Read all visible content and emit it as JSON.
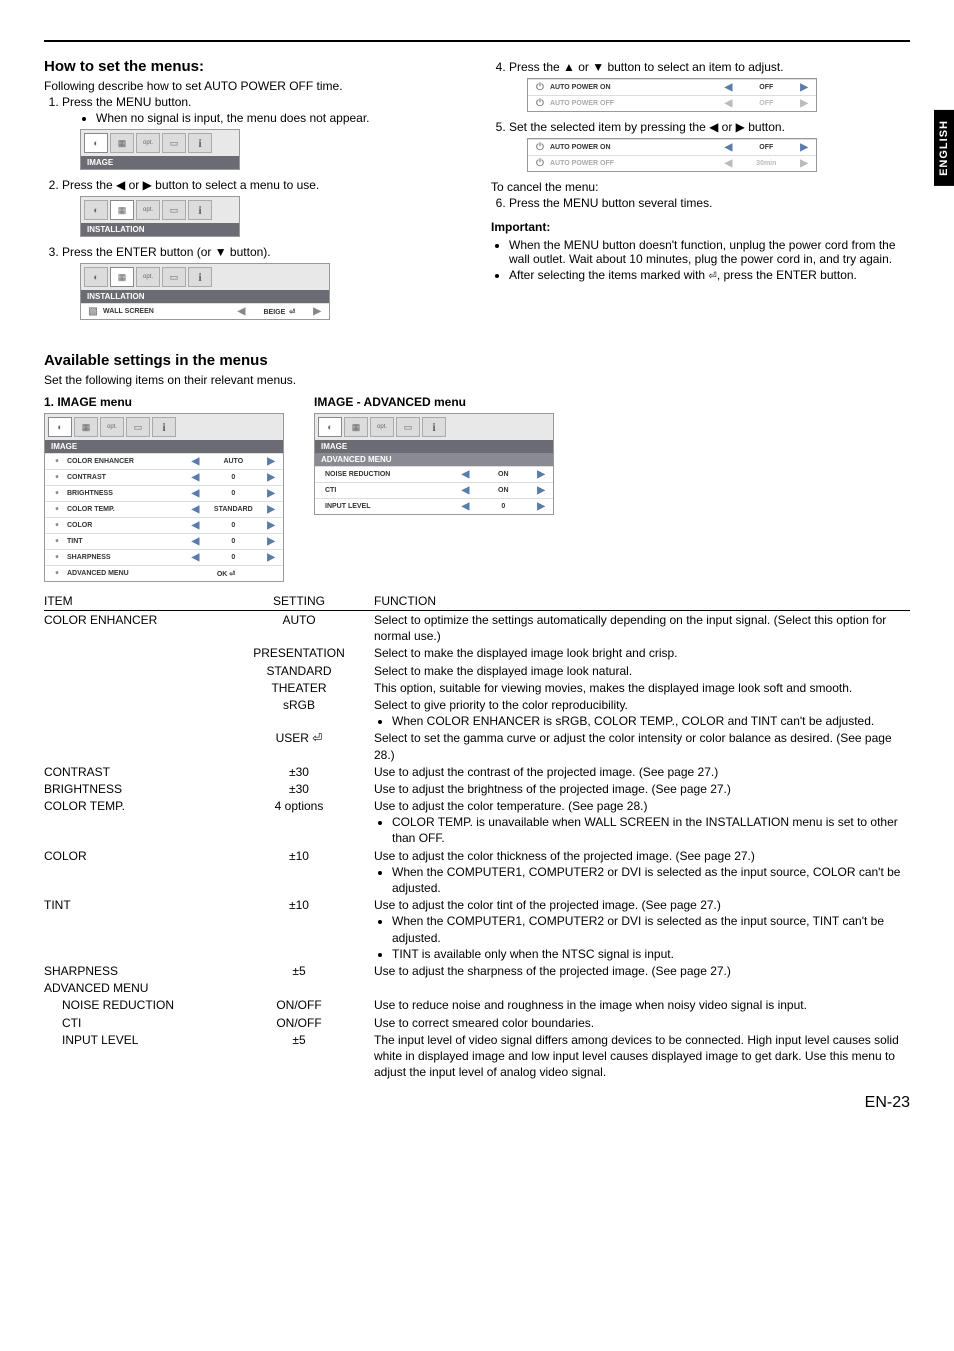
{
  "sideTab": "ENGLISH",
  "left": {
    "h2": "How to set the menus:",
    "intro": "Following describe how to set AUTO POWER OFF time.",
    "step1": "Press the MENU button.",
    "step1bullet": "When no signal is input, the menu does not appear.",
    "menu1Title": "IMAGE",
    "step2": "Press the ◀ or ▶ button to select a menu to use.",
    "menu2Title": "INSTALLATION",
    "step3": "Press the ENTER button (or ▼ button).",
    "menu3Title": "INSTALLATION",
    "menu3RowLabel": "WALL SCREEN",
    "menu3RowValue": "BEIGE"
  },
  "right": {
    "step4": "Press the ▲ or ▼ button to select an item to adjust.",
    "r4a_label": "AUTO POWER ON",
    "r4a_value": "OFF",
    "r4b_label": "AUTO POWER OFF",
    "r4b_value": "OFF",
    "step5": "Set the selected item by pressing the ◀ or ▶ button.",
    "r5a_label": "AUTO POWER ON",
    "r5a_value": "OFF",
    "r5b_label": "AUTO POWER OFF",
    "r5b_value": "30min",
    "cancelTitle": "To cancel the menu:",
    "step6": "Press the MENU button several times.",
    "importantTitle": "Important:",
    "imp1": "When the MENU button doesn't function, unplug the power cord from the wall outlet. Wait about 10 minutes, plug the power cord in, and try again.",
    "imp2a": "After selecting the items marked with ",
    "imp2b": ", press the ENTER button."
  },
  "avail": {
    "h2": "Available settings in the menus",
    "sub": "Set the following items on their relevant menus.",
    "menuA_title": "1. IMAGE menu",
    "menuA_bar": "IMAGE",
    "menuA_rows": [
      {
        "label": "COLOR ENHANCER",
        "value": "AUTO"
      },
      {
        "label": "CONTRAST",
        "value": "0"
      },
      {
        "label": "BRIGHTNESS",
        "value": "0"
      },
      {
        "label": "COLOR TEMP.",
        "value": "STANDARD"
      },
      {
        "label": "COLOR",
        "value": "0"
      },
      {
        "label": "TINT",
        "value": "0"
      },
      {
        "label": "SHARPNESS",
        "value": "0"
      },
      {
        "label": "ADVANCED MENU",
        "value": "OK ⏎"
      }
    ],
    "menuB_title": "IMAGE - ADVANCED menu",
    "menuB_bar1": "IMAGE",
    "menuB_bar2": "ADVANCED MENU",
    "menuB_rows": [
      {
        "label": "NOISE REDUCTION",
        "value": "ON"
      },
      {
        "label": "CTI",
        "value": "ON"
      },
      {
        "label": "INPUT LEVEL",
        "value": "0"
      }
    ]
  },
  "table": {
    "h_item": "ITEM",
    "h_setting": "SETTING",
    "h_function": "FUNCTION",
    "rows": [
      {
        "item": "COLOR ENHANCER",
        "setting": "AUTO",
        "func": "Select to optimize the settings automatically depending on the input signal. (Select this option for normal use.)"
      },
      {
        "item": "",
        "setting": "PRESENTATION",
        "func": "Select to make the displayed image look bright and crisp."
      },
      {
        "item": "",
        "setting": "STANDARD",
        "func": "Select to make the displayed image look natural."
      },
      {
        "item": "",
        "setting": "THEATER",
        "func": "This option, suitable for viewing movies, makes the displayed image look soft and smooth."
      },
      {
        "item": "",
        "setting": "sRGB",
        "func": "Select to give priority to the color reproducibility.",
        "bullets": [
          "When COLOR ENHANCER is sRGB, COLOR TEMP., COLOR and TINT can't be adjusted."
        ]
      },
      {
        "item": "",
        "setting": "USER ⏎",
        "func": "Select to set the gamma curve or adjust the color intensity or color balance as desired. (See page 28.)"
      },
      {
        "item": "CONTRAST",
        "setting": "±30",
        "func": "Use to adjust the contrast of the projected image. (See page 27.)"
      },
      {
        "item": "BRIGHTNESS",
        "setting": "±30",
        "func": "Use to adjust the brightness of the projected image. (See page 27.)"
      },
      {
        "item": "COLOR TEMP.",
        "setting": "4 options",
        "func": "Use to adjust the color temperature. (See page 28.)",
        "bullets": [
          "COLOR TEMP. is unavailable when WALL SCREEN in the INSTALLATION menu is set to other than OFF."
        ]
      },
      {
        "item": "COLOR",
        "setting": "±10",
        "func": "Use to adjust the color thickness of the projected image. (See page 27.)",
        "bullets": [
          "When the COMPUTER1, COMPUTER2 or DVI is selected as the input source, COLOR can't be adjusted."
        ]
      },
      {
        "item": "TINT",
        "setting": "±10",
        "func": "Use to adjust the color tint of the projected image. (See page 27.)",
        "bullets": [
          "When the COMPUTER1, COMPUTER2 or DVI is selected as the input source, TINT can't be adjusted.",
          "TINT is available only when the NTSC signal is input."
        ]
      },
      {
        "item": "SHARPNESS",
        "setting": "±5",
        "func": "Use to adjust the sharpness of the projected image. (See page 27.)"
      },
      {
        "item": "ADVANCED MENU",
        "setting": "",
        "func": ""
      },
      {
        "item": "NOISE REDUCTION",
        "indent": true,
        "setting": "ON/OFF",
        "func": "Use to reduce noise and roughness in the image when noisy video signal is input."
      },
      {
        "item": "CTI",
        "indent": true,
        "setting": "ON/OFF",
        "func": "Use to correct smeared color boundaries."
      },
      {
        "item": "INPUT LEVEL",
        "indent": true,
        "setting": "±5",
        "func": "The input level of video signal differs among devices to be connected. High input level causes solid white in displayed image and low input level causes displayed image to get dark. Use this menu to adjust the input level of analog video signal."
      }
    ]
  },
  "pageNum": "EN-23"
}
